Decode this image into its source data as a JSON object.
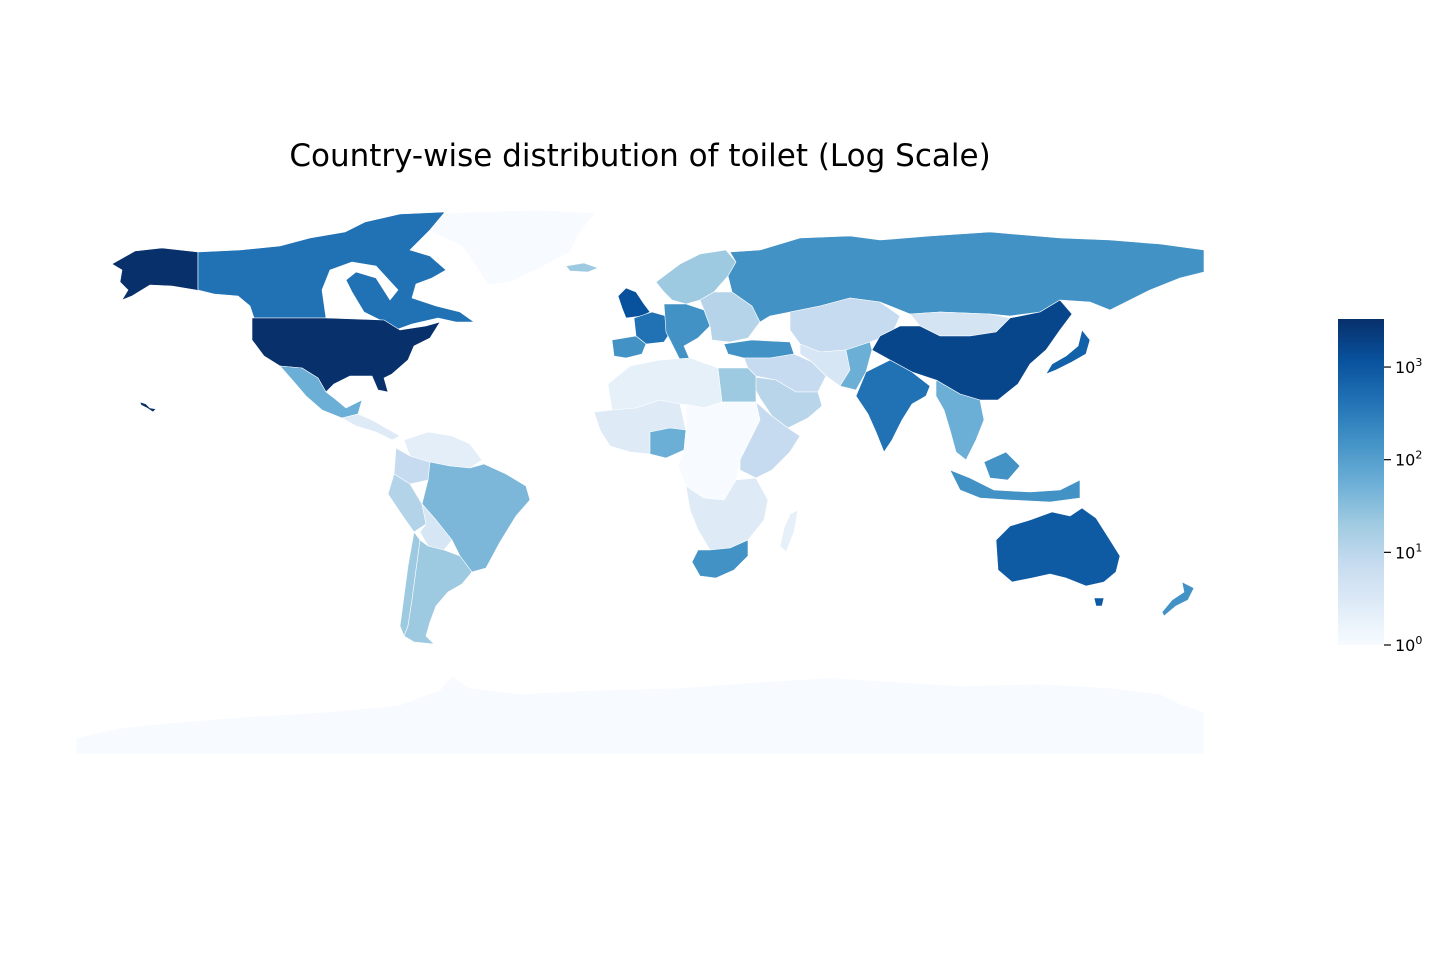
{
  "title": "Country-wise distribution of toilet (Log Scale)",
  "colormap": {
    "name": "Blues",
    "stops": [
      "#f7fbff",
      "#deebf7",
      "#c6dbef",
      "#9ecae1",
      "#6baed6",
      "#4292c6",
      "#2171b5",
      "#08519c",
      "#08306b"
    ]
  },
  "colorbar": {
    "scale": "log",
    "range": [
      1,
      3300
    ],
    "ticks": [
      {
        "value": 1,
        "base": "10",
        "exp": "0"
      },
      {
        "value": 10,
        "base": "10",
        "exp": "1"
      },
      {
        "value": 100,
        "base": "10",
        "exp": "2"
      },
      {
        "value": 1000,
        "base": "10",
        "exp": "3"
      }
    ]
  },
  "regions": [
    {
      "name": "Greenland",
      "value": 1,
      "color": "#f7fbff"
    },
    {
      "name": "Antarctica",
      "value": 1,
      "color": "#f7fbff"
    },
    {
      "name": "Canada",
      "value": 200,
      "color": "#2171b5"
    },
    {
      "name": "United States",
      "value": 3000,
      "color": "#08306b"
    },
    {
      "name": "Alaska",
      "value": 3000,
      "color": "#08306b"
    },
    {
      "name": "Mexico",
      "value": 60,
      "color": "#6baed6"
    },
    {
      "name": "Central America",
      "value": 3,
      "color": "#deebf7"
    },
    {
      "name": "Venezuela",
      "value": 3,
      "color": "#e3eef9"
    },
    {
      "name": "Colombia",
      "value": 6,
      "color": "#c6dbef"
    },
    {
      "name": "Peru",
      "value": 12,
      "color": "#b3d3e8"
    },
    {
      "name": "Brazil",
      "value": 40,
      "color": "#7cb7da"
    },
    {
      "name": "Bolivia",
      "value": 4,
      "color": "#d6e6f4"
    },
    {
      "name": "Argentina",
      "value": 25,
      "color": "#9ecae1"
    },
    {
      "name": "Chile",
      "value": 25,
      "color": "#9ecae1"
    },
    {
      "name": "United Kingdom",
      "value": 1500,
      "color": "#08519c"
    },
    {
      "name": "France",
      "value": 150,
      "color": "#2171b5"
    },
    {
      "name": "Iberia",
      "value": 100,
      "color": "#4292c6"
    },
    {
      "name": "Central Europe",
      "value": 100,
      "color": "#4292c6"
    },
    {
      "name": "Scandinavia",
      "value": 30,
      "color": "#9ecae1"
    },
    {
      "name": "Eastern Europe",
      "value": 15,
      "color": "#b5d4e9"
    },
    {
      "name": "Turkey",
      "value": 100,
      "color": "#4292c6"
    },
    {
      "name": "Russia",
      "value": 100,
      "color": "#4292c6"
    },
    {
      "name": "Kazakhstan",
      "value": 5,
      "color": "#c6dbef"
    },
    {
      "name": "Mongolia",
      "value": 5,
      "color": "#d4e4f3"
    },
    {
      "name": "Middle East",
      "value": 12,
      "color": "#c6dbef"
    },
    {
      "name": "Saudi Arabia",
      "value": 12,
      "color": "#b8d5ea"
    },
    {
      "name": "Iran",
      "value": 4,
      "color": "#d6e6f4"
    },
    {
      "name": "Pakistan",
      "value": 50,
      "color": "#6baed6"
    },
    {
      "name": "India",
      "value": 200,
      "color": "#2171b5"
    },
    {
      "name": "China",
      "value": 1500,
      "color": "#08468c"
    },
    {
      "name": "Japan",
      "value": 400,
      "color": "#1361a9"
    },
    {
      "name": "Southeast Asia",
      "value": 40,
      "color": "#6baed6"
    },
    {
      "name": "Indonesia",
      "value": 80,
      "color": "#4292c6"
    },
    {
      "name": "North Africa",
      "value": 2,
      "color": "#e6f0f9"
    },
    {
      "name": "Egypt",
      "value": 20,
      "color": "#9ecae1"
    },
    {
      "name": "West Africa",
      "value": 3,
      "color": "#deebf7"
    },
    {
      "name": "Nigeria",
      "value": 40,
      "color": "#6baed6"
    },
    {
      "name": "Central Africa",
      "value": 1,
      "color": "#f7fbff"
    },
    {
      "name": "East Africa",
      "value": 8,
      "color": "#c6dbef"
    },
    {
      "name": "Southern Africa",
      "value": 3,
      "color": "#deebf7"
    },
    {
      "name": "South Africa",
      "value": 100,
      "color": "#4292c6"
    },
    {
      "name": "Madagascar",
      "value": 2,
      "color": "#e6f0f9"
    },
    {
      "name": "Australia",
      "value": 800,
      "color": "#0f5ba3"
    },
    {
      "name": "New Zealand",
      "value": 100,
      "color": "#4292c6"
    },
    {
      "name": "Hawaii",
      "value": 3000,
      "color": "#08306b"
    },
    {
      "name": "Iceland",
      "value": 20,
      "color": "#9ecae1"
    }
  ]
}
